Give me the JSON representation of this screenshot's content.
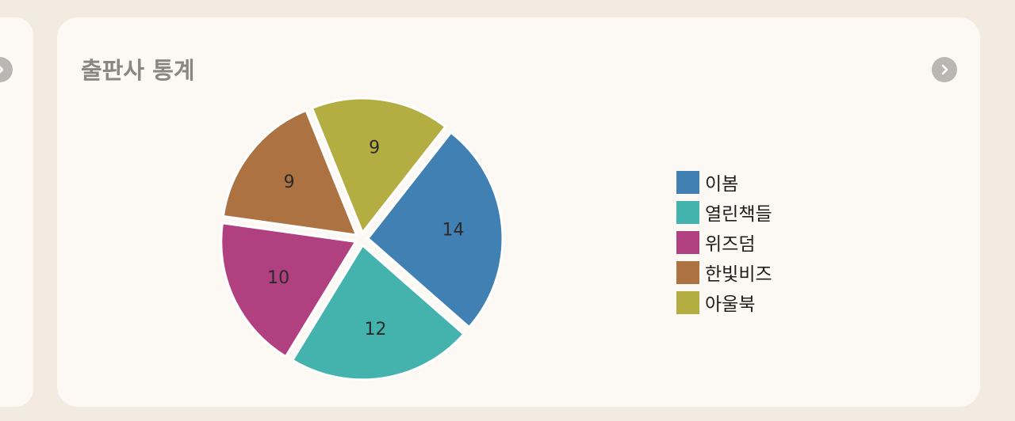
{
  "card": {
    "title": "출판사 통계"
  },
  "icons": {
    "next": "chevron-right-icon",
    "prev_card_next": "chevron-right-icon"
  },
  "chart_data": {
    "type": "pie",
    "title": "",
    "categories": [
      "이봄",
      "열린책들",
      "위즈덤",
      "한빛비즈",
      "아울북"
    ],
    "values": [
      14,
      12,
      10,
      9,
      9
    ],
    "colors": [
      "#4180b3",
      "#44b2ad",
      "#b04080",
      "#ad7242",
      "#b3ad42"
    ],
    "exploded": true,
    "legend_position": "right"
  }
}
